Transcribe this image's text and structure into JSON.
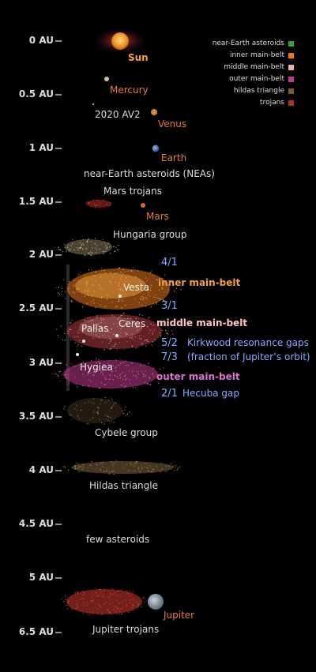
{
  "axis": {
    "ticks": [
      "0 AU",
      "0.5 AU",
      "1 AU",
      "1.5 AU",
      "2 AU",
      "2.5 AU",
      "3 AU",
      "3.5 AU",
      "4 AU",
      "4.5 AU",
      "5 AU",
      "6.5 AU"
    ]
  },
  "bodies": {
    "sun": "Sun",
    "mercury": "Mercury",
    "av2": "2020 AV2",
    "venus": "Venus",
    "earth": "Earth",
    "neas": "near-Earth asteroids (NEAs)",
    "mars_trojans": "Mars trojans",
    "mars": "Mars",
    "hungaria": "Hungaria group",
    "vesta": "Vesta",
    "pallas": "Pallas",
    "ceres": "Ceres",
    "hygiea": "Hygiea",
    "cybele": "Cybele group",
    "hildas": "Hildas triangle",
    "few": "few asteroids",
    "jupiter": "Jupiter",
    "jupiter_trojans": "Jupiter trojans"
  },
  "regions": {
    "inner": "inner main-belt",
    "middle": "middle main-belt",
    "outer": "outer main-belt"
  },
  "resonances": {
    "r41": "4/1",
    "r31": "3/1",
    "r52": "5/2",
    "r73": "7/3",
    "r21": "2/1",
    "kirkwood": "Kirkwood resonance gaps",
    "fraction": "(fraction of Jupiter’s orbit)",
    "hecuba": "Hecuba gap"
  },
  "legend": [
    {
      "label": "near-Earth asteroids",
      "color": "#3aa13a"
    },
    {
      "label": "inner main-belt",
      "color": "#e8761e"
    },
    {
      "label": "middle main-belt",
      "color": "#f0b0a8"
    },
    {
      "label": "outer main-belt",
      "color": "#c03a8a"
    },
    {
      "label": "hildas triangle",
      "color": "#7a5a3a"
    },
    {
      "label": "trojans",
      "color": "#b0302a"
    }
  ],
  "colors": {
    "sun": "#f5a338",
    "planet_label": "#e8784a",
    "resonance": "#8aa8ff",
    "inner": "#f0a040",
    "middle": "#ffc8c8",
    "outer": "#e070d0"
  }
}
